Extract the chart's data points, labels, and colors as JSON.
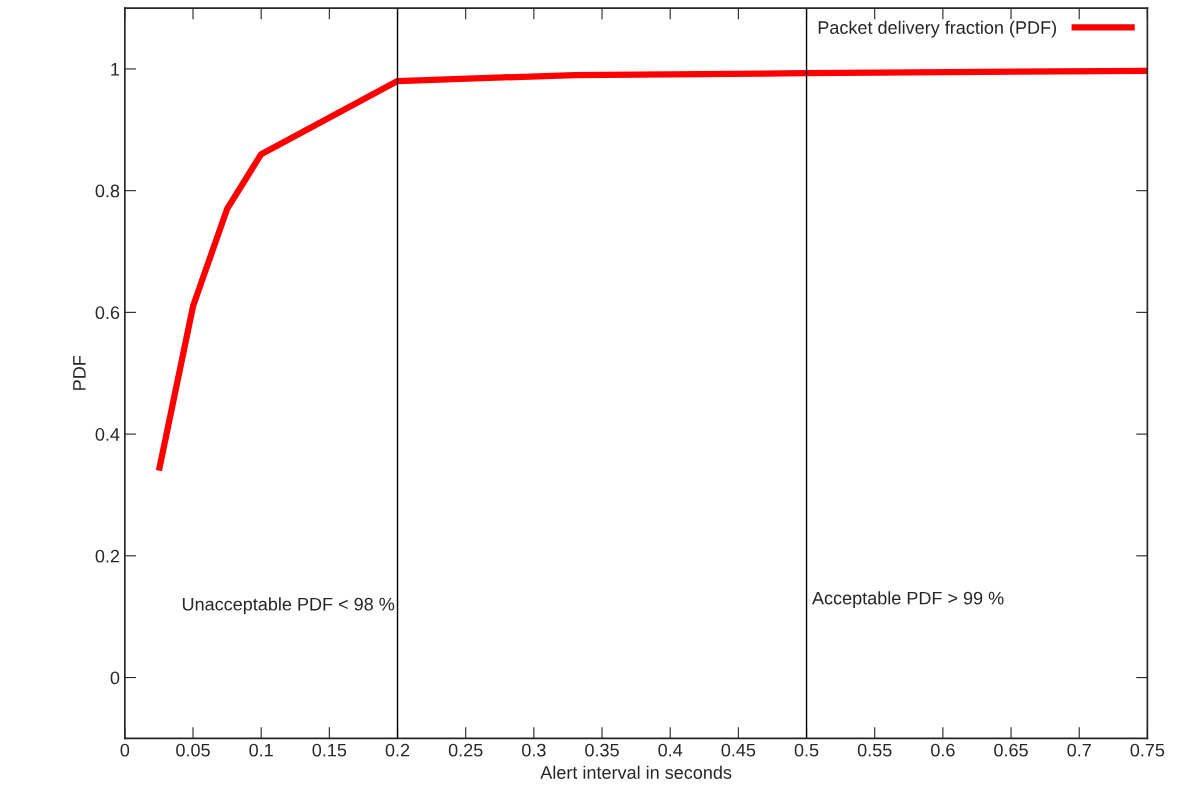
{
  "chart_data": {
    "type": "line",
    "xlabel": "Alert interval in seconds",
    "ylabel": "PDF",
    "x": [
      0.025,
      0.05,
      0.075,
      0.1,
      0.2,
      0.33,
      0.5,
      0.75
    ],
    "series": [
      {
        "name": "Packet delivery fraction (PDF)",
        "color": "#ff0000",
        "values": [
          0.34,
          0.61,
          0.77,
          0.86,
          0.98,
          0.99,
          0.993,
          0.997
        ]
      }
    ],
    "xlim": [
      0,
      0.75
    ],
    "ylim": [
      -0.1,
      1.1
    ],
    "xticks": [
      0,
      0.05,
      0.1,
      0.15,
      0.2,
      0.25,
      0.3,
      0.35,
      0.4,
      0.45,
      0.5,
      0.55,
      0.6,
      0.65,
      0.7,
      0.75
    ],
    "yticks": [
      0,
      0.2,
      0.4,
      0.6,
      0.8,
      1
    ],
    "ref_lines": [
      {
        "axis": "x",
        "value": 0.2,
        "label": "Unacceptable PDF < 98 %",
        "color": "#000000"
      },
      {
        "axis": "x",
        "value": 0.5,
        "label": "Acceptable PDF > 99 %",
        "color": "#000000"
      }
    ],
    "legend": "top right",
    "grid": false,
    "marker": "none",
    "line_style": "solid"
  }
}
